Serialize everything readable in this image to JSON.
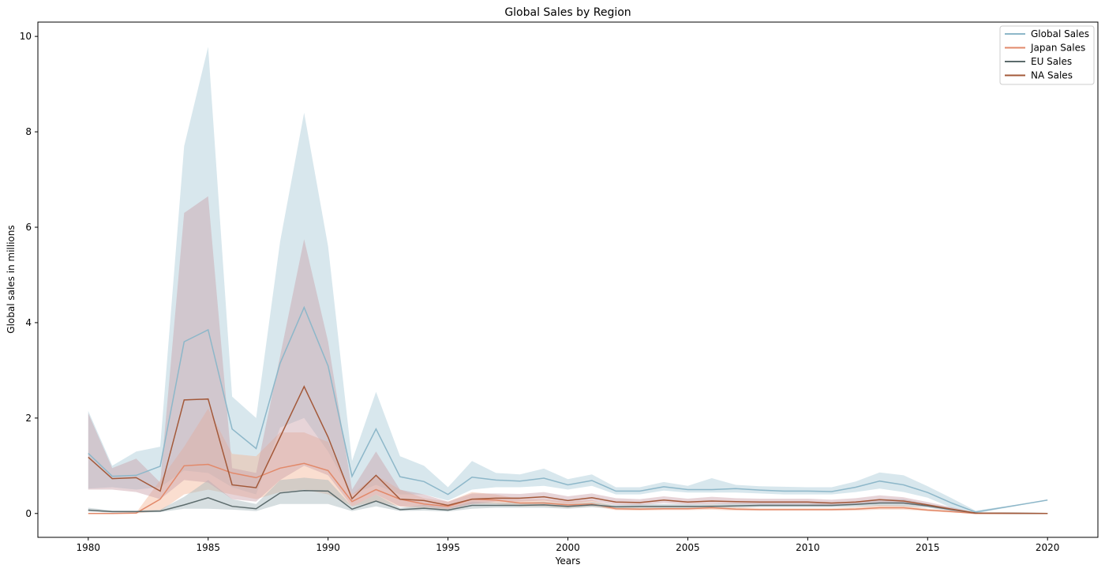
{
  "chart_data": {
    "type": "line",
    "title": "Global Sales by Region",
    "xlabel": "Years",
    "ylabel": "Global sales in millions",
    "xlim": [
      1977.9,
      2022.1
    ],
    "ylim": [
      -0.5,
      10.3
    ],
    "xticks": [
      1980,
      1985,
      1990,
      1995,
      2000,
      2005,
      2010,
      2015,
      2020
    ],
    "yticks": [
      0,
      2,
      4,
      6,
      8,
      10
    ],
    "grid": false,
    "legend_position": "top-right",
    "x": [
      1980,
      1981,
      1982,
      1983,
      1984,
      1985,
      1986,
      1987,
      1988,
      1989,
      1990,
      1991,
      1992,
      1993,
      1994,
      1995,
      1996,
      1997,
      1998,
      1999,
      2000,
      2001,
      2002,
      2003,
      2004,
      2005,
      2006,
      2007,
      2008,
      2009,
      2010,
      2011,
      2012,
      2013,
      2014,
      2015,
      2016,
      2017,
      2020
    ],
    "series": [
      {
        "name": "Global Sales",
        "color": "#8db7c9",
        "band_color": "#a9cad8",
        "values": [
          1.26,
          0.78,
          0.8,
          0.99,
          3.6,
          3.85,
          1.77,
          1.36,
          3.15,
          4.32,
          3.09,
          0.78,
          1.77,
          0.77,
          0.67,
          0.4,
          0.76,
          0.7,
          0.68,
          0.74,
          0.6,
          0.69,
          0.47,
          0.47,
          0.56,
          0.5,
          0.5,
          0.52,
          0.49,
          0.47,
          0.47,
          0.46,
          0.55,
          0.68,
          0.6,
          0.44,
          0.22,
          0.03,
          0.28
        ],
        "ci_low": [
          0.52,
          0.55,
          0.5,
          0.55,
          0.9,
          0.85,
          0.55,
          0.4,
          1.8,
          2.0,
          1.3,
          0.4,
          0.6,
          0.4,
          0.4,
          0.27,
          0.5,
          0.55,
          0.55,
          0.58,
          0.5,
          0.58,
          0.4,
          0.4,
          0.48,
          0.44,
          0.44,
          0.44,
          0.42,
          0.4,
          0.4,
          0.4,
          0.45,
          0.52,
          0.45,
          0.33,
          0.12,
          0.0,
          0.28
        ],
        "ci_high": [
          2.15,
          1.0,
          1.3,
          1.4,
          7.7,
          9.78,
          2.45,
          2.0,
          5.7,
          8.4,
          5.6,
          1.1,
          2.55,
          1.2,
          1.0,
          0.55,
          1.1,
          0.85,
          0.82,
          0.94,
          0.72,
          0.82,
          0.55,
          0.55,
          0.66,
          0.58,
          0.74,
          0.6,
          0.57,
          0.56,
          0.55,
          0.55,
          0.67,
          0.86,
          0.8,
          0.57,
          0.32,
          0.06,
          0.28
        ]
      },
      {
        "name": "Japan Sales",
        "color": "#e2896a",
        "band_color": "#f3b597",
        "values": [
          0.0,
          0.0,
          0.01,
          0.3,
          1.0,
          1.03,
          0.85,
          0.75,
          0.95,
          1.05,
          0.9,
          0.25,
          0.5,
          0.3,
          0.2,
          0.15,
          0.3,
          0.28,
          0.22,
          0.22,
          0.18,
          0.2,
          0.1,
          0.09,
          0.1,
          0.1,
          0.12,
          0.09,
          0.08,
          0.08,
          0.08,
          0.08,
          0.09,
          0.12,
          0.12,
          0.07,
          0.04,
          0.0,
          0.0
        ],
        "ci_low": [
          0.0,
          0.0,
          0.0,
          0.05,
          0.4,
          0.5,
          0.4,
          0.3,
          0.45,
          0.5,
          0.4,
          0.15,
          0.25,
          0.15,
          0.1,
          0.08,
          0.2,
          0.2,
          0.15,
          0.15,
          0.12,
          0.15,
          0.07,
          0.06,
          0.07,
          0.07,
          0.08,
          0.06,
          0.06,
          0.06,
          0.06,
          0.06,
          0.06,
          0.08,
          0.08,
          0.05,
          0.02,
          0.0,
          0.0
        ],
        "ci_high": [
          0.0,
          0.0,
          0.02,
          0.7,
          1.4,
          2.2,
          1.25,
          1.2,
          1.7,
          1.7,
          1.5,
          0.4,
          0.8,
          0.5,
          0.32,
          0.25,
          0.45,
          0.4,
          0.3,
          0.3,
          0.25,
          0.28,
          0.14,
          0.13,
          0.14,
          0.14,
          0.18,
          0.13,
          0.11,
          0.11,
          0.11,
          0.11,
          0.13,
          0.18,
          0.17,
          0.1,
          0.06,
          0.0,
          0.0
        ]
      },
      {
        "name": "EU Sales",
        "color": "#5c6b6c",
        "band_color": "#a3b5bb",
        "values": [
          0.07,
          0.04,
          0.04,
          0.05,
          0.18,
          0.33,
          0.15,
          0.1,
          0.43,
          0.48,
          0.47,
          0.09,
          0.26,
          0.08,
          0.11,
          0.07,
          0.17,
          0.17,
          0.17,
          0.18,
          0.15,
          0.18,
          0.14,
          0.15,
          0.15,
          0.15,
          0.15,
          0.16,
          0.17,
          0.17,
          0.17,
          0.17,
          0.19,
          0.22,
          0.22,
          0.16,
          0.08,
          0.01,
          0.0
        ],
        "ci_low": [
          0.04,
          0.02,
          0.02,
          0.03,
          0.1,
          0.1,
          0.08,
          0.05,
          0.2,
          0.2,
          0.2,
          0.05,
          0.15,
          0.05,
          0.06,
          0.04,
          0.1,
          0.12,
          0.12,
          0.12,
          0.1,
          0.13,
          0.1,
          0.11,
          0.11,
          0.11,
          0.11,
          0.12,
          0.13,
          0.13,
          0.13,
          0.13,
          0.14,
          0.16,
          0.15,
          0.12,
          0.05,
          0.0,
          0.0
        ],
        "ci_high": [
          0.12,
          0.06,
          0.06,
          0.08,
          0.35,
          0.7,
          0.3,
          0.2,
          0.7,
          0.75,
          0.7,
          0.15,
          0.4,
          0.12,
          0.18,
          0.12,
          0.25,
          0.23,
          0.23,
          0.25,
          0.2,
          0.24,
          0.18,
          0.2,
          0.2,
          0.2,
          0.2,
          0.22,
          0.22,
          0.22,
          0.22,
          0.22,
          0.25,
          0.3,
          0.3,
          0.2,
          0.12,
          0.02,
          0.0
        ]
      },
      {
        "name": "NA Sales",
        "color": "#a3593a",
        "band_color": "#c9a0a8",
        "values": [
          1.18,
          0.73,
          0.75,
          0.47,
          2.38,
          2.4,
          0.6,
          0.54,
          1.6,
          2.66,
          1.6,
          0.31,
          0.8,
          0.3,
          0.27,
          0.17,
          0.3,
          0.32,
          0.32,
          0.35,
          0.27,
          0.33,
          0.24,
          0.23,
          0.28,
          0.24,
          0.26,
          0.25,
          0.24,
          0.24,
          0.24,
          0.22,
          0.24,
          0.29,
          0.26,
          0.18,
          0.09,
          0.01,
          0.0
        ],
        "ci_low": [
          0.5,
          0.5,
          0.45,
          0.3,
          0.7,
          0.65,
          0.3,
          0.25,
          0.7,
          1.0,
          0.8,
          0.15,
          0.4,
          0.15,
          0.15,
          0.1,
          0.2,
          0.25,
          0.25,
          0.27,
          0.2,
          0.26,
          0.18,
          0.18,
          0.22,
          0.19,
          0.2,
          0.2,
          0.19,
          0.19,
          0.19,
          0.17,
          0.18,
          0.22,
          0.2,
          0.14,
          0.06,
          0.0,
          0.0
        ],
        "ci_high": [
          2.1,
          0.95,
          1.15,
          0.65,
          6.3,
          6.65,
          0.95,
          0.85,
          3.3,
          5.75,
          3.6,
          0.5,
          1.3,
          0.5,
          0.4,
          0.25,
          0.42,
          0.42,
          0.41,
          0.45,
          0.36,
          0.42,
          0.32,
          0.3,
          0.36,
          0.31,
          0.35,
          0.32,
          0.31,
          0.31,
          0.31,
          0.29,
          0.32,
          0.38,
          0.34,
          0.24,
          0.13,
          0.02,
          0.0
        ]
      }
    ]
  }
}
